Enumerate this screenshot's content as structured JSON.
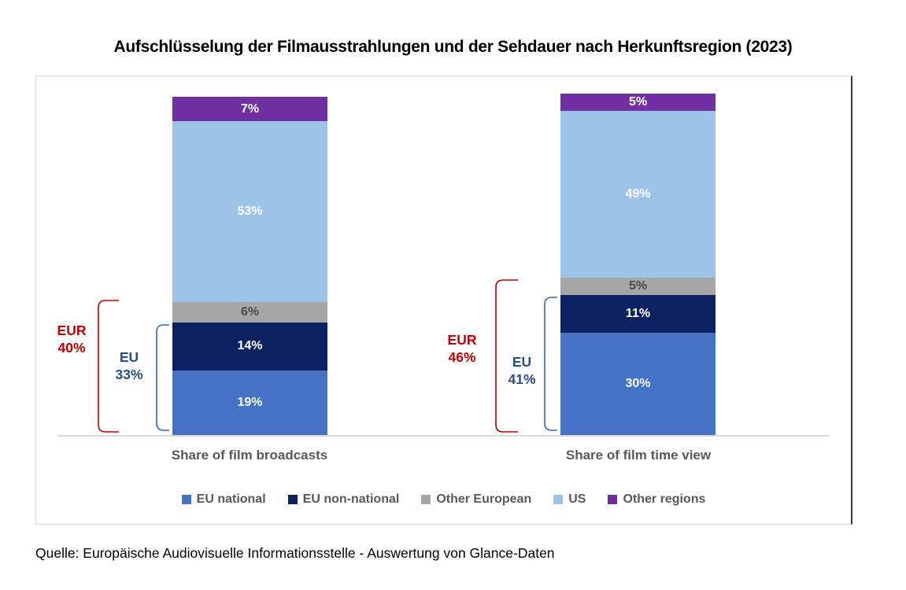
{
  "title": "Aufschlüsselung der Filmausstrahlungen und der Sehdauer nach Herkunftsregion (2023)",
  "source": "Quelle: Europäische Audiovisuelle Informationsstelle - Auswertung von Glance-Daten",
  "colors": {
    "eu_national": "#4472C4",
    "eu_non_national": "#0B2161",
    "other_european": "#A6A6A6",
    "us": "#9DC3E6",
    "other_regions": "#7030A0",
    "eur_annotation_red": "#C00000",
    "eu_annotation_blue": "#2A4B8C",
    "bracket_blue": "#3A66B0",
    "axis_gray": "#D9D9D9",
    "label_gray": "#595959"
  },
  "chart_data": {
    "type": "bar",
    "variant": "stacked-percentage",
    "title": "Aufschlüsselung der Filmausstrahlungen und der Sehdauer nach Herkunftsregion (2023)",
    "categories": [
      "Share of film broadcasts",
      "Share of film time view"
    ],
    "series": [
      {
        "name": "EU national",
        "color": "#4472C4",
        "label_color": "#FFFFFF",
        "values": [
          19,
          30
        ]
      },
      {
        "name": "EU non-national",
        "color": "#0B2161",
        "label_color": "#FFFFFF",
        "values": [
          14,
          11
        ]
      },
      {
        "name": "Other European",
        "color": "#A6A6A6",
        "label_color": "#4a4a4a",
        "values": [
          6,
          5
        ]
      },
      {
        "name": "US",
        "color": "#9DC3E6",
        "label_color": "#FFFFFF",
        "values": [
          53,
          49
        ]
      },
      {
        "name": "Other regions",
        "color": "#7030A0",
        "label_color": "#FFFFFF",
        "values": [
          7,
          5
        ]
      }
    ],
    "value_suffix": "%",
    "ylim": [
      0,
      100
    ],
    "grid": false,
    "legend_position": "bottom",
    "annotations": [
      {
        "bar": 0,
        "label": "EUR",
        "value": "40%",
        "pct": 40,
        "color": "#C00000",
        "bracket_color": "#C00000"
      },
      {
        "bar": 0,
        "label": "EU",
        "value": "33%",
        "pct": 33,
        "color": "#2A4B8C",
        "bracket_color": "#3A66B0"
      },
      {
        "bar": 1,
        "label": "EUR",
        "value": "46%",
        "pct": 46,
        "color": "#C00000",
        "bracket_color": "#C00000"
      },
      {
        "bar": 1,
        "label": "EU",
        "value": "41%",
        "pct": 41,
        "color": "#2A4B8C",
        "bracket_color": "#3A66B0"
      }
    ]
  }
}
